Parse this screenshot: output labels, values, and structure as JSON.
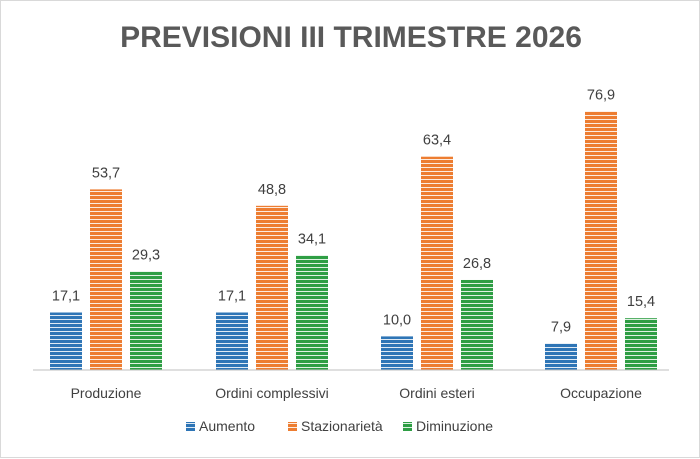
{
  "chart_data": {
    "type": "bar",
    "title": "PREVISIONI III TRIMESTRE 2026",
    "categories": [
      "Produzione",
      "Ordini complessivi",
      "Ordini esteri",
      "Occupazione"
    ],
    "series": [
      {
        "name": "Aumento",
        "values": [
          17.1,
          17.1,
          10.0,
          7.9
        ],
        "labels": [
          "17,1",
          "17,1",
          "10,0",
          "7,9"
        ],
        "color": "#2e75b6"
      },
      {
        "name": "Stazionarietà",
        "values": [
          53.7,
          48.8,
          63.4,
          76.9
        ],
        "labels": [
          "53,7",
          "48,8",
          "63,4",
          "76,9"
        ],
        "color": "#ed7d31"
      },
      {
        "name": "Diminuzione",
        "values": [
          29.3,
          34.1,
          26.8,
          15.4
        ],
        "labels": [
          "29,3",
          "34,1",
          "26,8",
          "15,4"
        ],
        "color": "#2e9e44"
      }
    ],
    "ylim": [
      0,
      80
    ],
    "grid": false,
    "legend": "bottom",
    "bar_pattern": "horizontal-stripes"
  }
}
